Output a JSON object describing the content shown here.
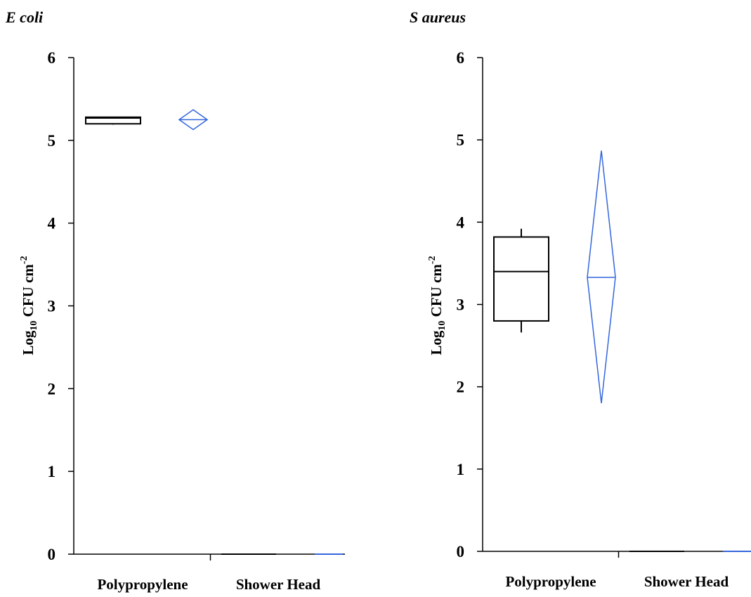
{
  "chart_data": [
    {
      "type": "box",
      "title": "E coli",
      "ylabel": {
        "prefix": "Log",
        "sub": "10",
        "main": " CFU cm",
        "sup": "-2"
      },
      "categories": [
        "Polypropylene",
        "Shower Head"
      ],
      "ylim": [
        0,
        6
      ],
      "yticks": [
        "0",
        "1",
        "2",
        "3",
        "4",
        "5",
        "6"
      ],
      "grid": false,
      "colors": {
        "box": "#000000",
        "diamond": "#3366dd"
      },
      "boxes": [
        {
          "category": "Polypropylene",
          "min": 5.19,
          "q1": 5.2,
          "median": 5.27,
          "q3": 5.28,
          "max": 5.28
        },
        {
          "category": "Shower Head",
          "min": 0,
          "q1": 0,
          "median": 0,
          "q3": 0,
          "max": 0
        }
      ],
      "mean_ci": [
        {
          "category": "Polypropylene",
          "mean": 5.25,
          "lower": 5.13,
          "upper": 5.37
        },
        {
          "category": "Shower Head",
          "mean": 0,
          "lower": 0,
          "upper": 0
        }
      ]
    },
    {
      "type": "box",
      "title": "S aureus",
      "ylabel": {
        "prefix": "Log",
        "sub": "10",
        "main": " CFU cm",
        "sup": "-2"
      },
      "categories": [
        "Polypropylene",
        "Shower Head"
      ],
      "ylim": [
        0,
        6
      ],
      "yticks": [
        "0",
        "1",
        "2",
        "3",
        "4",
        "5",
        "6"
      ],
      "grid": false,
      "colors": {
        "box": "#000000",
        "diamond": "#3366dd"
      },
      "boxes": [
        {
          "category": "Polypropylene",
          "min": 2.66,
          "q1": 2.8,
          "median": 3.4,
          "q3": 3.82,
          "max": 3.92
        },
        {
          "category": "Shower Head",
          "min": 0,
          "q1": 0,
          "median": 0,
          "q3": 0,
          "max": 0
        }
      ],
      "mean_ci": [
        {
          "category": "Polypropylene",
          "mean": 3.33,
          "lower": 1.8,
          "upper": 4.87
        },
        {
          "category": "Shower Head",
          "mean": 0,
          "lower": 0,
          "upper": 0
        }
      ]
    }
  ]
}
